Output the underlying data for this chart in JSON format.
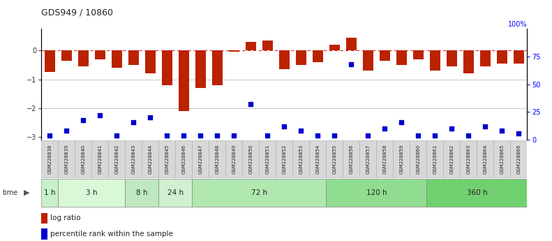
{
  "title": "GDS949 / 10860",
  "samples": [
    "GSM228838",
    "GSM228839",
    "GSM228840",
    "GSM228841",
    "GSM228842",
    "GSM228843",
    "GSM228844",
    "GSM228845",
    "GSM228846",
    "GSM228847",
    "GSM228848",
    "GSM228849",
    "GSM228850",
    "GSM228851",
    "GSM228852",
    "GSM228853",
    "GSM228854",
    "GSM228855",
    "GSM228856",
    "GSM228857",
    "GSM228858",
    "GSM228859",
    "GSM228860",
    "GSM228861",
    "GSM228862",
    "GSM228863",
    "GSM228864",
    "GSM228865",
    "GSM228866"
  ],
  "log_ratio": [
    -0.75,
    -0.35,
    -0.55,
    -0.3,
    -0.6,
    -0.5,
    -0.8,
    -1.2,
    -2.1,
    -1.3,
    -1.2,
    -0.05,
    0.3,
    0.35,
    -0.65,
    -0.5,
    -0.4,
    0.2,
    0.45,
    -0.7,
    -0.35,
    -0.5,
    -0.3,
    -0.7,
    -0.55,
    -0.8,
    -0.55,
    -0.45,
    -0.45
  ],
  "percentile_rank": [
    4,
    8,
    18,
    22,
    4,
    16,
    20,
    4,
    4,
    4,
    4,
    4,
    32,
    4,
    12,
    8,
    4,
    4,
    68,
    4,
    10,
    16,
    4,
    4,
    10,
    4,
    12,
    8,
    6
  ],
  "time_groups": [
    {
      "label": "1 h",
      "start": 0,
      "end": 1,
      "color": "#c8f0c8"
    },
    {
      "label": "3 h",
      "start": 1,
      "end": 5,
      "color": "#d8f8d8"
    },
    {
      "label": "8 h",
      "start": 5,
      "end": 7,
      "color": "#c0e8c0"
    },
    {
      "label": "24 h",
      "start": 7,
      "end": 9,
      "color": "#d0f0d0"
    },
    {
      "label": "72 h",
      "start": 9,
      "end": 17,
      "color": "#b0e8b0"
    },
    {
      "label": "120 h",
      "start": 17,
      "end": 23,
      "color": "#90dc90"
    },
    {
      "label": "360 h",
      "start": 23,
      "end": 29,
      "color": "#70d070"
    }
  ],
  "bar_color": "#bb2200",
  "dot_color": "#0000cc",
  "ylim_left": [
    -3.1,
    0.75
  ],
  "ylim_right": [
    0,
    100
  ],
  "yticks_left": [
    0,
    -1,
    -2,
    -3
  ],
  "yticks_right_vals": [
    75,
    50,
    25,
    0
  ],
  "yticks_right_labels": [
    "75",
    "50",
    "25",
    "0"
  ],
  "ytick_right_top_label": "100%",
  "hlines_dashed": [
    0
  ],
  "hlines_dotted": [
    -1,
    -2
  ],
  "background_color": "#ffffff",
  "sample_box_color": "#d8d8d8",
  "sample_box_edge": "#aaaaaa"
}
